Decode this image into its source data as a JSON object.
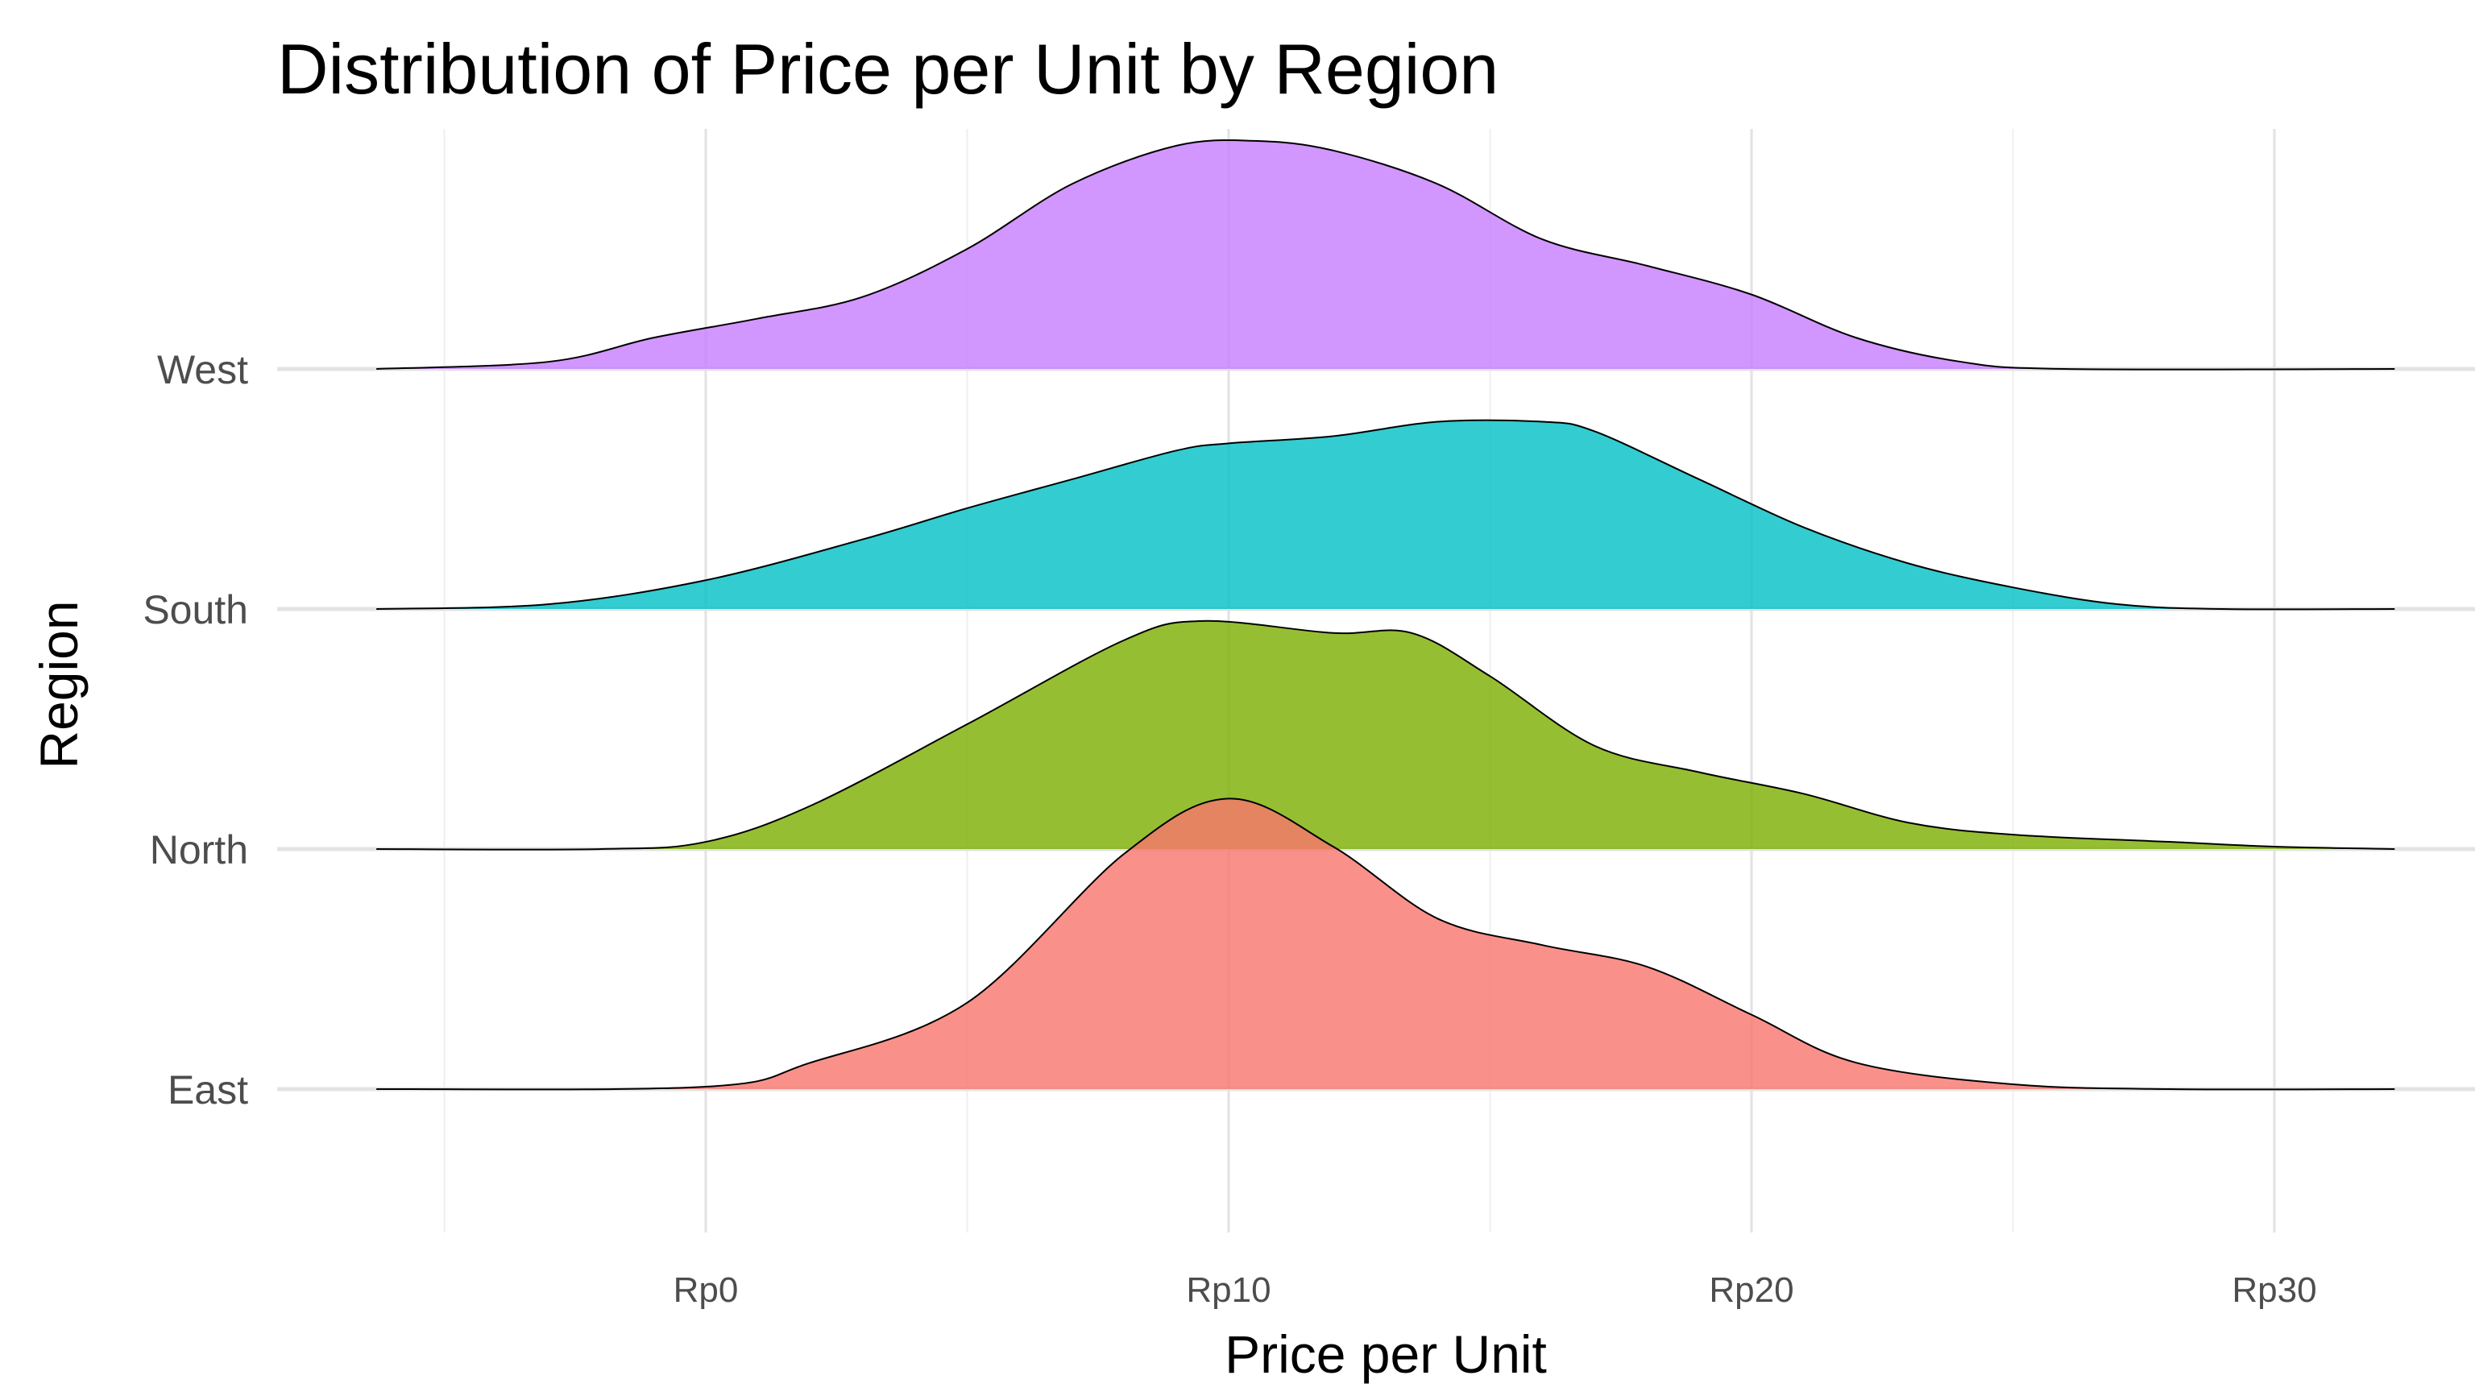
{
  "chart_data": {
    "type": "ridgeline",
    "title": "Distribution of Price per Unit by Region",
    "xlabel": "Price per Unit",
    "ylabel": "Region",
    "xlim": [
      -6.3,
      32.3
    ],
    "x_ticks": [
      0,
      10,
      20,
      30
    ],
    "x_tick_labels": [
      "Rp0",
      "Rp10",
      "Rp20",
      "Rp30"
    ],
    "grid": true,
    "categories": [
      "East",
      "North",
      "South",
      "West"
    ],
    "series": [
      {
        "name": "East",
        "color": "#F8766D",
        "points": [
          [
            -6.3,
            0
          ],
          [
            0,
            0.01
          ],
          [
            2,
            0.11
          ],
          [
            5,
            0.36
          ],
          [
            8,
            0.98
          ],
          [
            10,
            1.21
          ],
          [
            12,
            1.01
          ],
          [
            14,
            0.71
          ],
          [
            16,
            0.6
          ],
          [
            18,
            0.51
          ],
          [
            20,
            0.31
          ],
          [
            22,
            0.11
          ],
          [
            25,
            0.02
          ],
          [
            28,
            0
          ],
          [
            32.3,
            0
          ]
        ]
      },
      {
        "name": "North",
        "color": "#7CAE00",
        "points": [
          [
            -6.3,
            0
          ],
          [
            -2,
            0
          ],
          [
            0,
            0.03
          ],
          [
            2,
            0.18
          ],
          [
            5,
            0.52
          ],
          [
            8,
            0.87
          ],
          [
            9.5,
            0.95
          ],
          [
            12,
            0.9
          ],
          [
            13.5,
            0.9
          ],
          [
            15,
            0.72
          ],
          [
            17,
            0.43
          ],
          [
            19,
            0.32
          ],
          [
            21,
            0.23
          ],
          [
            23,
            0.11
          ],
          [
            25,
            0.06
          ],
          [
            28,
            0.03
          ],
          [
            30,
            0.01
          ],
          [
            32.3,
            0
          ]
        ]
      },
      {
        "name": "South",
        "color": "#00BFC4",
        "points": [
          [
            -6.3,
            0
          ],
          [
            -3,
            0.02
          ],
          [
            0,
            0.12
          ],
          [
            3,
            0.29
          ],
          [
            5,
            0.42
          ],
          [
            7,
            0.54
          ],
          [
            9,
            0.66
          ],
          [
            10,
            0.69
          ],
          [
            12,
            0.72
          ],
          [
            14,
            0.78
          ],
          [
            16,
            0.78
          ],
          [
            17,
            0.74
          ],
          [
            19,
            0.54
          ],
          [
            21,
            0.34
          ],
          [
            23,
            0.19
          ],
          [
            25,
            0.09
          ],
          [
            27,
            0.02
          ],
          [
            29,
            0
          ],
          [
            32.3,
            0
          ]
        ]
      },
      {
        "name": "West",
        "color": "#C77CFF",
        "points": [
          [
            -6.3,
            0
          ],
          [
            -3,
            0.03
          ],
          [
            -1,
            0.13
          ],
          [
            1,
            0.21
          ],
          [
            3,
            0.3
          ],
          [
            5,
            0.5
          ],
          [
            7,
            0.77
          ],
          [
            9,
            0.93
          ],
          [
            10.5,
            0.95
          ],
          [
            12,
            0.91
          ],
          [
            14,
            0.77
          ],
          [
            16,
            0.54
          ],
          [
            18,
            0.43
          ],
          [
            20,
            0.31
          ],
          [
            22,
            0.13
          ],
          [
            24,
            0.03
          ],
          [
            26,
            0
          ],
          [
            32.3,
            0
          ]
        ]
      }
    ]
  }
}
